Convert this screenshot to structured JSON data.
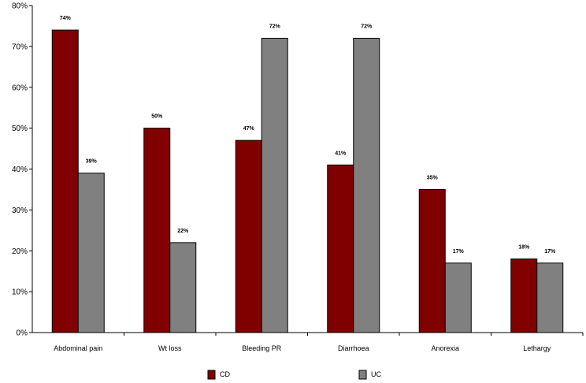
{
  "chart_data": {
    "type": "bar",
    "title": "",
    "xlabel": "",
    "ylabel": "",
    "categories": [
      "Abdominal pain",
      "Wt loss",
      "Bleeding PR",
      "Diarrhoea",
      "Anorexia",
      "Lethargy"
    ],
    "series": [
      {
        "name": "CD",
        "color": "#800000",
        "values": [
          74,
          50,
          47,
          41,
          35,
          18
        ]
      },
      {
        "name": "UC",
        "color": "#808080",
        "values": [
          39,
          22,
          72,
          72,
          17,
          17
        ]
      }
    ],
    "ylim": [
      0,
      80
    ],
    "yticks": [
      0,
      10,
      20,
      30,
      40,
      50,
      60,
      70,
      80
    ],
    "ytick_suffix": "%",
    "data_labels": true,
    "grid": false,
    "legend_position": "bottom"
  }
}
